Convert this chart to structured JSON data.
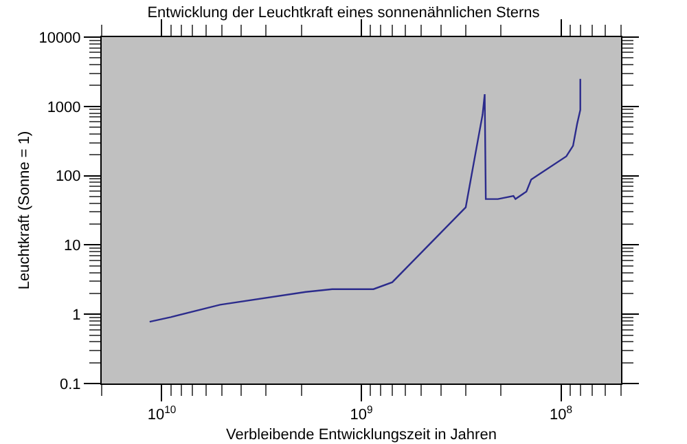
{
  "chart_data": {
    "type": "line",
    "title": "Entwicklung der Leuchtkraft eines sonnenähnlichen Sterns",
    "xlabel": "Verbleibende Entwicklungszeit in Jahren",
    "ylabel": "Leuchtkraft (Sonne = 1)",
    "log": "xy",
    "grid": false,
    "marker": "none",
    "line_style": "solid",
    "xlim": [
      20000000000,
      50000000
    ],
    "ylim": [
      0.1,
      10000
    ],
    "xticks": [
      {
        "value": 20000000000,
        "label": null
      },
      {
        "value": 10000000000,
        "label": "10$^{10}$"
      },
      {
        "value": 9000000000,
        "label": null
      },
      {
        "value": 8000000000,
        "label": null
      },
      {
        "value": 7000000000,
        "label": null
      },
      {
        "value": 6000000000,
        "label": null
      },
      {
        "value": 5000000000,
        "label": null
      },
      {
        "value": 4000000000,
        "label": null
      },
      {
        "value": 3000000000,
        "label": null
      },
      {
        "value": 2000000000,
        "label": null
      },
      {
        "value": 1000000000,
        "label": "10$^{9}$"
      },
      {
        "value": 900000000,
        "label": null
      },
      {
        "value": 800000000,
        "label": null
      },
      {
        "value": 700000000,
        "label": null
      },
      {
        "value": 600000000,
        "label": null
      },
      {
        "value": 500000000,
        "label": null
      },
      {
        "value": 400000000,
        "label": null
      },
      {
        "value": 300000000,
        "label": null
      },
      {
        "value": 200000000,
        "label": null
      },
      {
        "value": 100000000,
        "label": "10$^{8}$"
      },
      {
        "value": 90000000,
        "label": null
      },
      {
        "value": 80000000,
        "label": null
      },
      {
        "value": 70000000,
        "label": null
      },
      {
        "value": 60000000,
        "label": null
      },
      {
        "value": 50000000,
        "label": null
      }
    ],
    "yticks": [
      0.1,
      {
        "value": 0.2,
        "label": null
      },
      {
        "value": 0.3,
        "label": null
      },
      {
        "value": 0.4,
        "label": null
      },
      {
        "value": 0.5,
        "label": null
      },
      {
        "value": 0.6,
        "label": null
      },
      {
        "value": 0.7,
        "label": null
      },
      {
        "value": 0.8,
        "label": null
      },
      {
        "value": 0.9,
        "label": null
      },
      1,
      {
        "value": 2,
        "label": null
      },
      {
        "value": 3,
        "label": null
      },
      {
        "value": 4,
        "label": null
      },
      {
        "value": 5,
        "label": null
      },
      {
        "value": 6,
        "label": null
      },
      {
        "value": 7,
        "label": null
      },
      {
        "value": 8,
        "label": null
      },
      {
        "value": 9,
        "label": null
      },
      10,
      {
        "value": 20,
        "label": null
      },
      {
        "value": 30,
        "label": null
      },
      {
        "value": 40,
        "label": null
      },
      {
        "value": 50,
        "label": null
      },
      {
        "value": 60,
        "label": null
      },
      {
        "value": 70,
        "label": null
      },
      {
        "value": 80,
        "label": null
      },
      {
        "value": 90,
        "label": null
      },
      100,
      {
        "value": 200,
        "label": null
      },
      {
        "value": 300,
        "label": null
      },
      {
        "value": 400,
        "label": null
      },
      {
        "value": 500,
        "label": null
      },
      {
        "value": 600,
        "label": null
      },
      {
        "value": 700,
        "label": null
      },
      {
        "value": 800,
        "label": null
      },
      {
        "value": 900,
        "label": null
      },
      1000,
      {
        "value": 2000,
        "label": null
      },
      {
        "value": 3000,
        "label": null
      },
      {
        "value": 4000,
        "label": null
      },
      {
        "value": 5000,
        "label": null
      },
      {
        "value": 6000,
        "label": null
      },
      {
        "value": 7000,
        "label": null
      },
      {
        "value": 8000,
        "label": null
      },
      {
        "value": 9000,
        "label": null
      },
      10000
    ],
    "series": [
      {
        "color": "#2b2b8c",
        "x": [
          11500000000,
          9000000000,
          5100000000,
          1900000000,
          1400000000,
          870000000,
          700000000,
          300000000,
          257000000,
          247000000,
          241000000,
          238000000,
          207000000,
          173000000,
          169000000,
          149000000,
          141000000,
          94000000,
          87000000,
          83000000,
          80000000,
          80000000
        ],
        "values": [
          0.78,
          0.91,
          1.37,
          2.1,
          2.3,
          2.3,
          2.9,
          35,
          410,
          760,
          1500,
          46,
          46,
          51,
          46,
          59,
          88,
          190,
          270,
          560,
          890,
          2500
        ]
      }
    ]
  }
}
